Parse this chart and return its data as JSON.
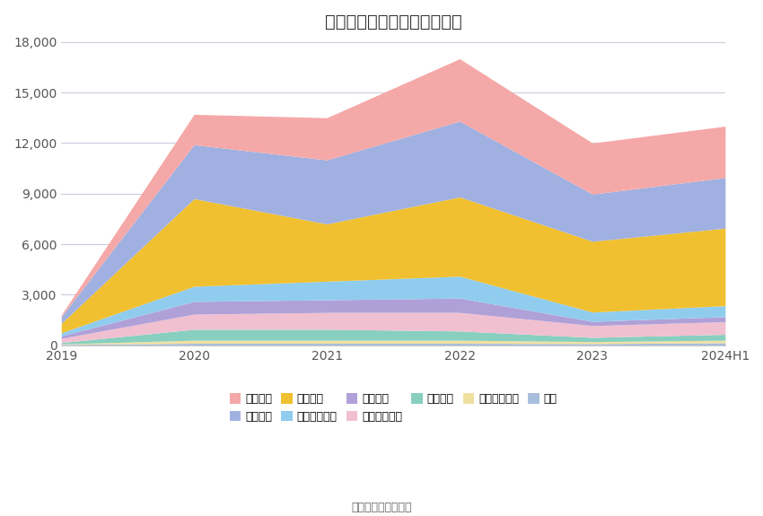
{
  "title": "历年主要负债堆积图（万元）",
  "years": [
    "2019",
    "2020",
    "2021",
    "2022",
    "2023",
    "2024H1"
  ],
  "source": "数据来源：恒生聚源",
  "series": [
    {
      "name": "其它",
      "color": "#a8bedd",
      "values": [
        50,
        120,
        120,
        120,
        100,
        150
      ]
    },
    {
      "name": "长期递延收益",
      "color": "#f0e0a0",
      "values": [
        30,
        180,
        180,
        180,
        120,
        150
      ]
    },
    {
      "name": "租赁负债",
      "color": "#88cfc0",
      "values": [
        80,
        650,
        650,
        550,
        250,
        350
      ]
    },
    {
      "name": "其他流动负债",
      "color": "#f0c0d0",
      "values": [
        250,
        900,
        1000,
        1100,
        700,
        750
      ]
    },
    {
      "name": "应交税费",
      "color": "#b0a0d8",
      "values": [
        150,
        750,
        750,
        850,
        250,
        300
      ]
    },
    {
      "name": "应付职工薪酬",
      "color": "#90ccee",
      "values": [
        180,
        900,
        1100,
        1300,
        550,
        650
      ]
    },
    {
      "name": "合同负债",
      "color": "#f0c030",
      "values": [
        560,
        5200,
        3400,
        4700,
        4200,
        4600
      ]
    },
    {
      "name": "应付账款",
      "color": "#a0b0e0",
      "values": [
        400,
        3200,
        3800,
        4500,
        2800,
        3000
      ]
    },
    {
      "name": "短期借款",
      "color": "#f5a8a8",
      "values": [
        100,
        1800,
        2500,
        3700,
        3030,
        3050
      ]
    }
  ],
  "ylim": [
    0,
    18000
  ],
  "yticks": [
    0,
    3000,
    6000,
    9000,
    12000,
    15000,
    18000
  ],
  "background_color": "#ffffff",
  "grid_color": "#ccccdd",
  "title_fontsize": 14,
  "tick_fontsize": 10,
  "legend_fontsize": 9
}
